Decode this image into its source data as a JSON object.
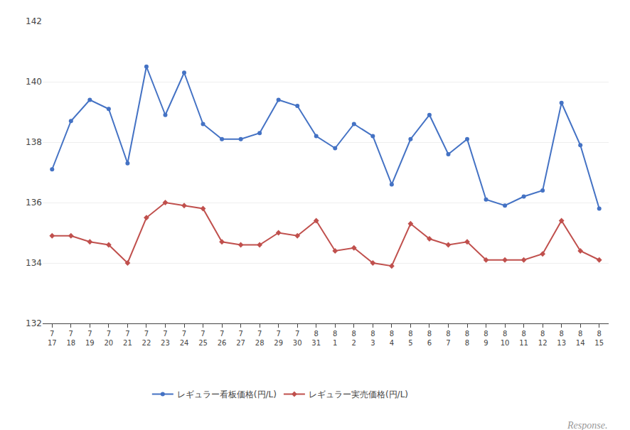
{
  "chart_data": {
    "type": "line",
    "categories": [
      "7\n17",
      "7\n18",
      "7\n19",
      "7\n20",
      "7\n21",
      "7\n22",
      "7\n23",
      "7\n24",
      "7\n25",
      "7\n26",
      "7\n27",
      "7\n28",
      "7\n29",
      "7\n30",
      "8\n31",
      "8\n1",
      "8\n2",
      "8\n3",
      "8\n4",
      "8\n5",
      "8\n6",
      "8\n7",
      "8\n8",
      "8\n9",
      "8\n10",
      "8\n11",
      "8\n12",
      "8\n13",
      "8\n14",
      "8\n15"
    ],
    "series": [
      {
        "name": "レギュラー看板価格(円/L)",
        "color": "#4472C4",
        "marker": "circle",
        "values": [
          137.1,
          138.7,
          139.4,
          139.1,
          137.3,
          140.5,
          138.9,
          140.3,
          138.6,
          138.1,
          138.1,
          138.3,
          139.4,
          139.2,
          138.2,
          137.8,
          138.6,
          138.2,
          136.6,
          138.1,
          138.9,
          137.6,
          138.1,
          136.1,
          135.9,
          136.2,
          136.4,
          139.3,
          137.9,
          135.8
        ]
      },
      {
        "name": "レギュラー実売価格(円/L)",
        "color": "#C0504D",
        "marker": "diamond",
        "values": [
          134.9,
          134.9,
          134.7,
          134.6,
          134.0,
          135.5,
          136.0,
          135.9,
          135.8,
          134.7,
          134.6,
          134.6,
          135.0,
          134.9,
          135.4,
          134.4,
          134.5,
          134.0,
          133.9,
          135.3,
          134.8,
          134.6,
          134.7,
          134.1,
          134.1,
          134.1,
          134.3,
          135.4,
          134.4,
          134.1
        ]
      }
    ],
    "ylim": [
      132,
      142
    ],
    "yticks": [
      132,
      134,
      136,
      138,
      140,
      142
    ],
    "grid": true,
    "legend": "bottom",
    "annotations": [
      "Response."
    ]
  }
}
